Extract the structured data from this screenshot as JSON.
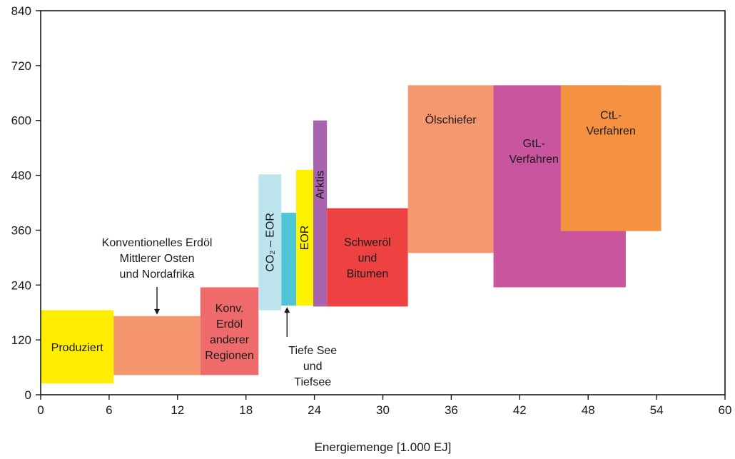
{
  "chart_data": {
    "type": "bar",
    "xlabel": "Energiemenge [1.000 EJ]",
    "ylabel": "",
    "xlim": [
      0,
      60
    ],
    "ylim": [
      0,
      840
    ],
    "xticks": [
      "0",
      "6",
      "12",
      "18",
      "24",
      "30",
      "36",
      "42",
      "48",
      "54",
      "60"
    ],
    "yticks": [
      "0",
      "120",
      "240",
      "360",
      "480",
      "600",
      "720",
      "840"
    ],
    "grid": false,
    "blocks": [
      {
        "label": [
          "Produziert"
        ],
        "x0": 0,
        "x1": 6.4,
        "y0": 25,
        "y1": 185,
        "color": "#ffee00"
      },
      {
        "label": [],
        "x0": 6.4,
        "x1": 14,
        "y0": 43,
        "y1": 172,
        "color": "#f5966e"
      },
      {
        "label": [
          "Konv.",
          "Erdöl",
          "anderer",
          "Regionen"
        ],
        "x0": 14,
        "x1": 19.1,
        "y0": 43,
        "y1": 235,
        "color": "#ef6b6b"
      },
      {
        "label": [
          "CO₂ – EOR"
        ],
        "vertical": true,
        "x0": 19.1,
        "x1": 21.1,
        "y0": 185,
        "y1": 482,
        "color": "#bde3ed"
      },
      {
        "label": [],
        "x0": 21.1,
        "x1": 22.4,
        "y0": 195,
        "y1": 398,
        "color": "#4fc4d6"
      },
      {
        "label": [
          "EOR"
        ],
        "vertical": true,
        "x0": 22.4,
        "x1": 23.9,
        "y0": 195,
        "y1": 492,
        "color": "#fff200"
      },
      {
        "label": [
          "Arktis"
        ],
        "vertical": true,
        "x0": 23.9,
        "x1": 25.1,
        "y0": 193,
        "y1": 600,
        "color": "#a864ae"
      },
      {
        "label": [
          "Schweröl",
          "und",
          "Bitumen"
        ],
        "x0": 25.1,
        "x1": 32.2,
        "y0": 193,
        "y1": 408,
        "color": "#ee4242"
      },
      {
        "label": [
          "Ölschiefer"
        ],
        "x0": 32.2,
        "x1": 39.7,
        "y0": 310,
        "y1": 677,
        "color": "#f5976f"
      },
      {
        "label": [
          "GtL-",
          "Verfahren"
        ],
        "x0": 39.7,
        "x1": 51.3,
        "y0": 235,
        "y1": 677,
        "color": "#c9559e"
      },
      {
        "label": [
          "CtL-",
          "Verfahren"
        ],
        "x0": 45.6,
        "x1": 54.4,
        "y0": 358,
        "y1": 677,
        "color": "#f59241"
      }
    ],
    "annotations": [
      {
        "lines": [
          "Konventionelles Erdöl",
          "Mittlerer Osten",
          "und Nordafrika"
        ],
        "x": 10.2,
        "y": 172
      },
      {
        "lines": [
          "Tiefe See",
          "und",
          "Tiefsee"
        ],
        "x": 21.6,
        "y": 195
      }
    ]
  }
}
